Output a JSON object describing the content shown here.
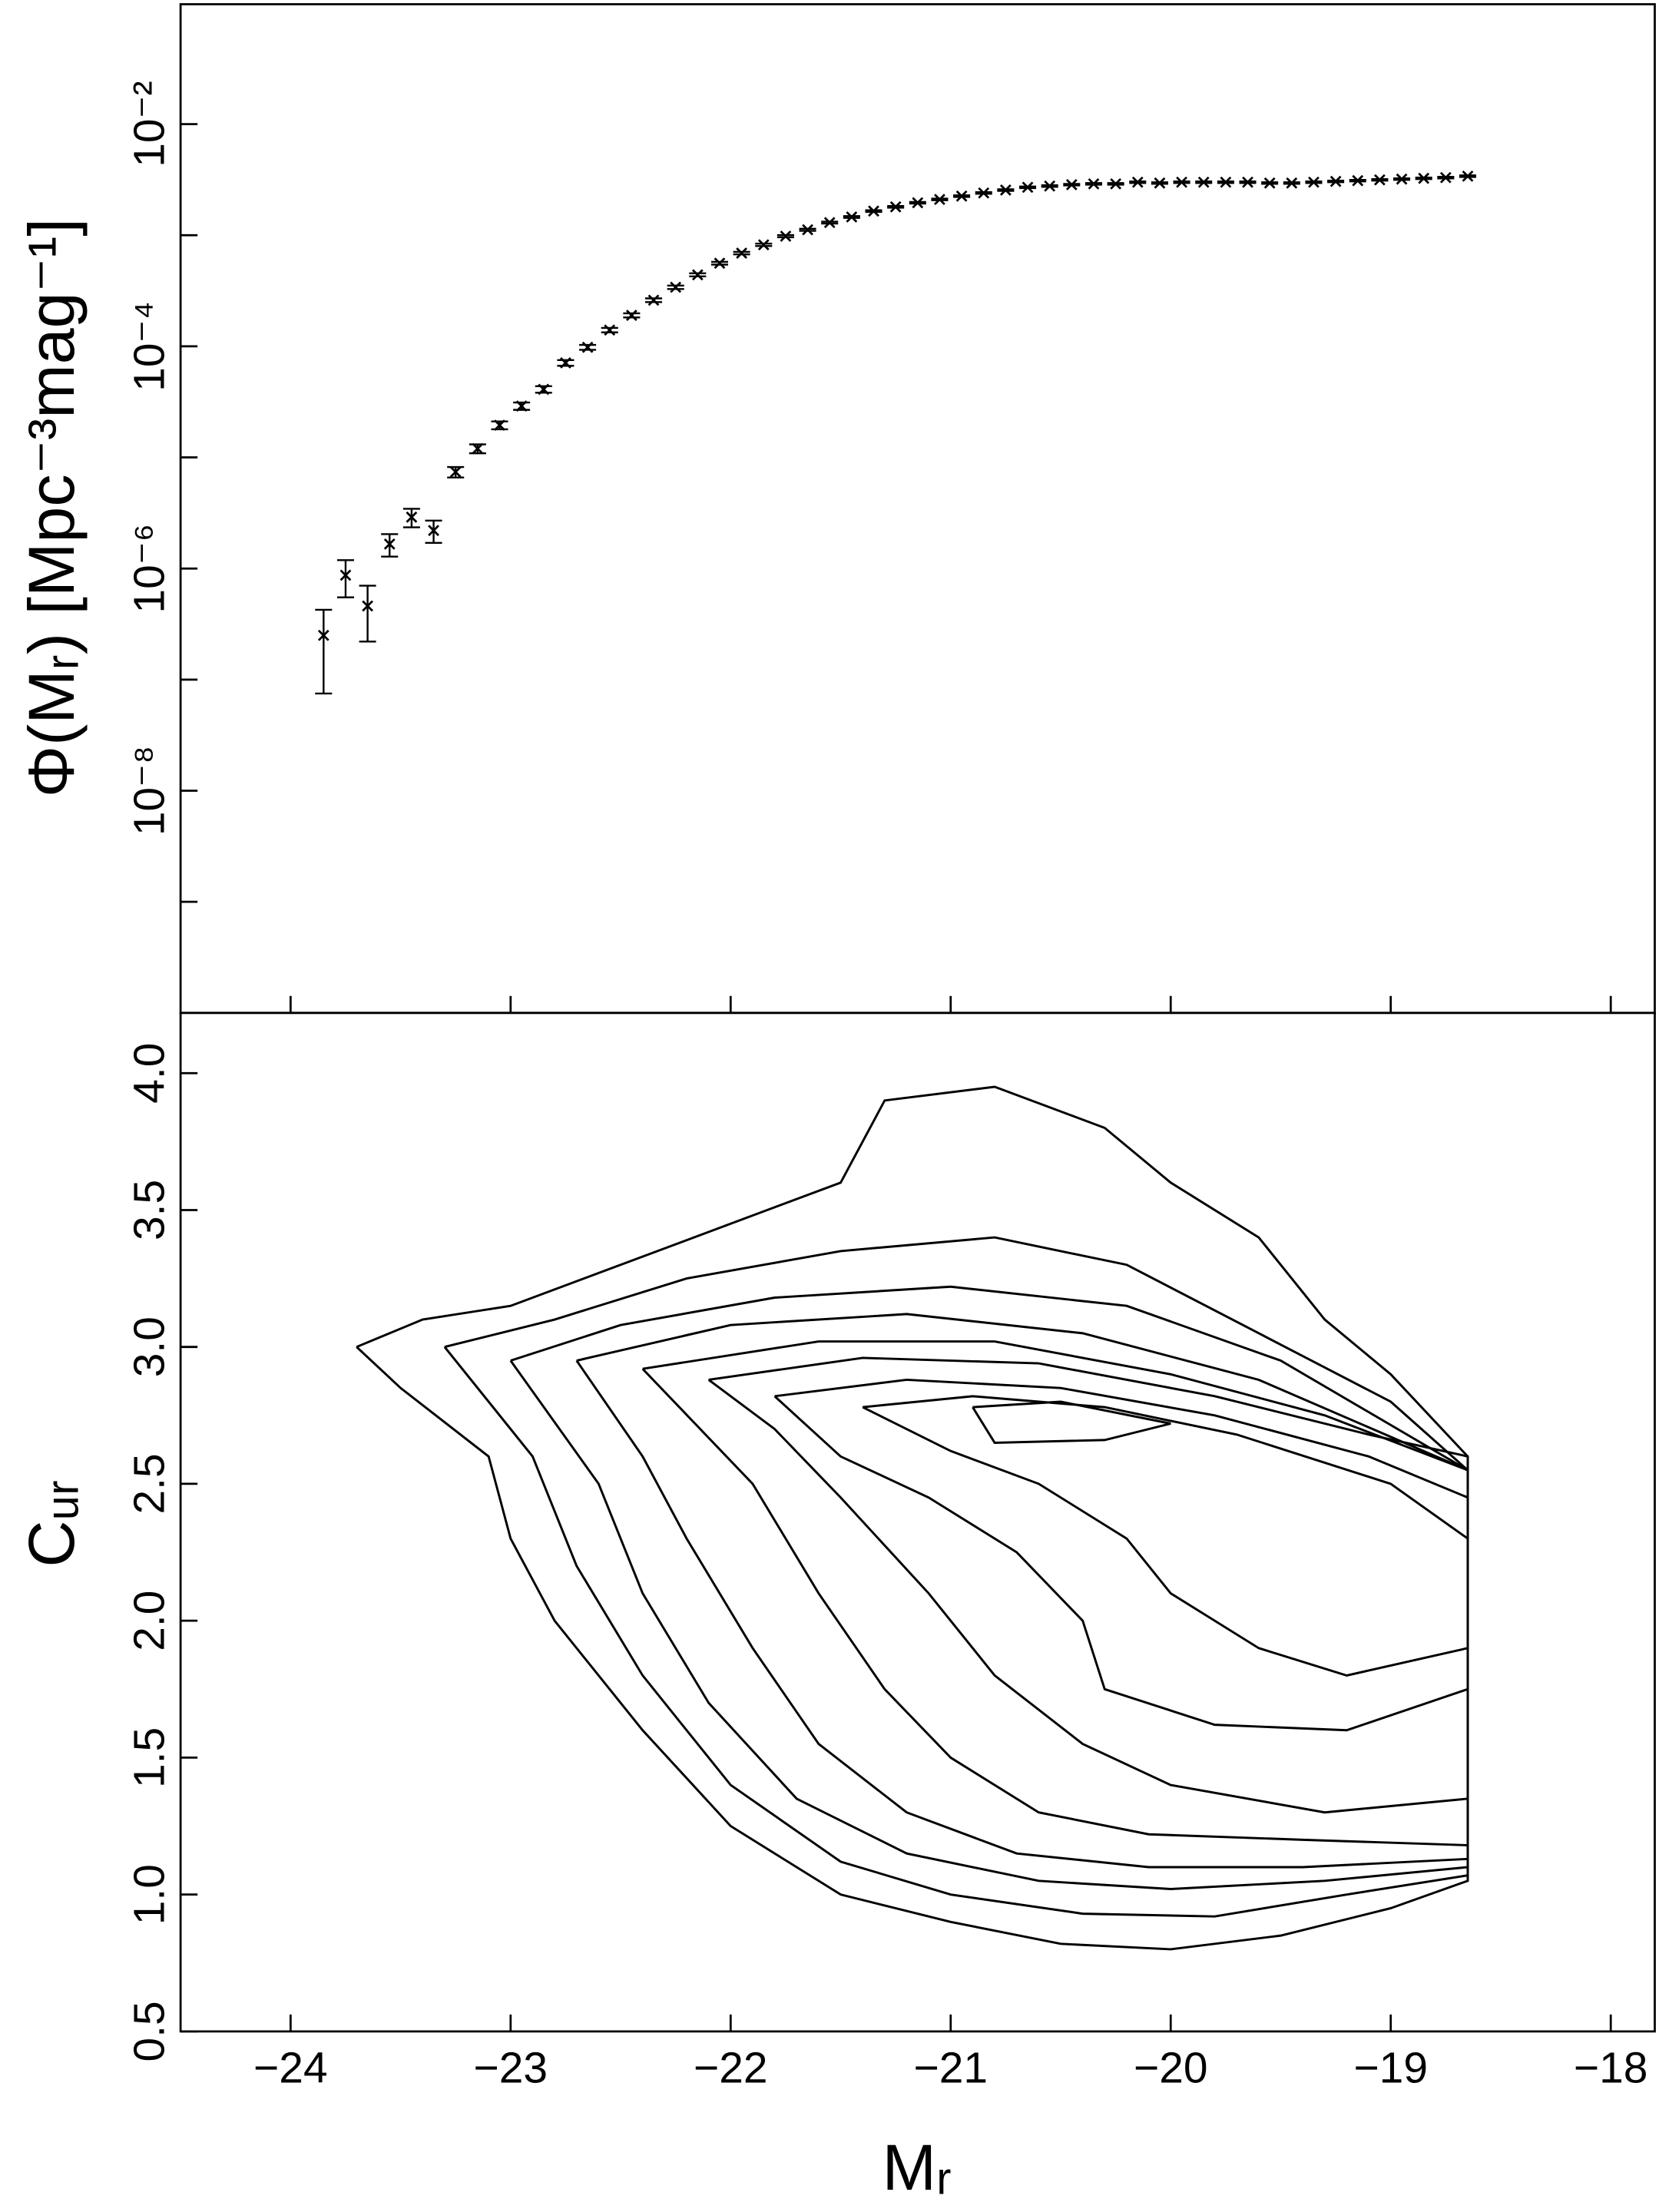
{
  "chart_data": [
    {
      "type": "scatter",
      "yscale": "log",
      "marker": "x",
      "color": "#000000",
      "xlim": [
        -24.5,
        -17.8
      ],
      "xticks": [
        -24,
        -23,
        -22,
        -21,
        -20,
        -19,
        -18
      ],
      "ylim": [
        1e-10,
        0.12
      ],
      "yticks": [
        {
          "value": 0.01,
          "label": "10⁻²"
        },
        {
          "value": 0.0001,
          "label": "10⁻⁴"
        },
        {
          "value": 1e-06,
          "label": "10⁻⁶"
        },
        {
          "value": 1e-08,
          "label": "10⁻⁸"
        }
      ],
      "yminorticks": [
        0.001,
        1e-05,
        1e-07,
        1e-09
      ],
      "ylabel": "Φ(Mᵣ) [Mpc⁻³mag⁻¹]",
      "x": [
        -23.85,
        -23.75,
        -23.65,
        -23.55,
        -23.45,
        -23.35,
        -23.25,
        -23.15,
        -23.05,
        -22.95,
        -22.85,
        -22.75,
        -22.65,
        -22.55,
        -22.45,
        -22.35,
        -22.25,
        -22.15,
        -22.05,
        -21.95,
        -21.85,
        -21.75,
        -21.65,
        -21.55,
        -21.45,
        -21.35,
        -21.25,
        -21.15,
        -21.05,
        -20.95,
        -20.85,
        -20.75,
        -20.65,
        -20.55,
        -20.45,
        -20.35,
        -20.25,
        -20.15,
        -20.05,
        -19.95,
        -19.85,
        -19.75,
        -19.65,
        -19.55,
        -19.45,
        -19.35,
        -19.25,
        -19.15,
        -19.05,
        -18.95,
        -18.85,
        -18.75,
        -18.65
      ],
      "values": [
        2.5e-07,
        8.7e-07,
        4.6e-07,
        1.66e-06,
        2.9e-06,
        2.2e-06,
        7.4e-06,
        1.2e-05,
        1.95e-05,
        2.9e-05,
        4.1e-05,
        7.1e-05,
        9.8e-05,
        0.00014,
        0.00019,
        0.00026,
        0.00034,
        0.00044,
        0.00056,
        0.00069,
        0.00082,
        0.00098,
        0.00112,
        0.0013,
        0.00146,
        0.00165,
        0.0018,
        0.00196,
        0.0021,
        0.00225,
        0.0024,
        0.00255,
        0.0027,
        0.00277,
        0.00285,
        0.0029,
        0.0029,
        0.003,
        0.00295,
        0.003,
        0.003,
        0.003,
        0.003,
        0.00295,
        0.00295,
        0.003,
        0.00305,
        0.0031,
        0.00315,
        0.0032,
        0.00325,
        0.0033,
        0.0034
      ],
      "errors": [
        1.75e-07,
        3.2e-07,
        2.4e-07,
        3.8e-07,
        5.5e-07,
        5e-07,
        8e-07,
        1.1e-06,
        1.6e-06,
        2.2e-06,
        2.8e-06,
        4.2e-06,
        5e-06,
        6.5e-06,
        8e-06,
        1e-05,
        1.2e-05,
        1.4e-05,
        1.6e-05,
        1.8e-05,
        2e-05,
        2.2e-05,
        2.4e-05,
        2.6e-05,
        2.8e-05,
        3e-05,
        3.2e-05,
        3.4e-05,
        3.6e-05,
        3.8e-05,
        4e-05,
        4.2e-05,
        4.4e-05,
        4.5e-05,
        4.6e-05,
        4.7e-05,
        4.7e-05,
        4.8e-05,
        4.8e-05,
        4.8e-05,
        4.8e-05,
        4.8e-05,
        4.8e-05,
        4.8e-05,
        4.8e-05,
        4.9e-05,
        5e-05,
        5e-05,
        5.1e-05,
        5.2e-05,
        5.2e-05,
        5.3e-05,
        5.5e-05
      ]
    },
    {
      "type": "contour",
      "color": "#000000",
      "xlim": [
        -24.5,
        -17.8
      ],
      "xticks": [
        {
          "value": -24,
          "label": "−24"
        },
        {
          "value": -23,
          "label": "−23"
        },
        {
          "value": -22,
          "label": "−22"
        },
        {
          "value": -21,
          "label": "−21"
        },
        {
          "value": -20,
          "label": "−20"
        },
        {
          "value": -19,
          "label": "−19"
        },
        {
          "value": -18,
          "label": "−18"
        }
      ],
      "ylim": [
        0.5,
        4.22
      ],
      "yticks": [
        0.5,
        {
          "value": 1,
          "label": "1.0"
        },
        1.5,
        {
          "value": 2,
          "label": "2.0"
        },
        2.5,
        {
          "value": 3,
          "label": "3.0"
        },
        3.5,
        {
          "value": 4,
          "label": "4.0"
        }
      ],
      "xlabel": "Mᵣ",
      "ylabel": "Cᵤᵣ",
      "contours": [
        {
          "x": [
            -23.7,
            -23.4,
            -23.0,
            -22.5,
            -22.0,
            -21.5,
            -21.3,
            -20.8,
            -20.3,
            -20.0,
            -19.6,
            -19.3,
            -19.0,
            -18.65,
            -18.65,
            -19.0,
            -19.5,
            -20.0,
            -20.5,
            -21.0,
            -21.5,
            -22.0,
            -22.4,
            -22.8,
            -23.0,
            -23.1,
            -23.5,
            -23.7
          ],
          "y": [
            3.0,
            3.1,
            3.15,
            3.3,
            3.45,
            3.6,
            3.9,
            3.95,
            3.8,
            3.6,
            3.4,
            3.1,
            2.9,
            2.6,
            1.05,
            0.95,
            0.85,
            0.8,
            0.82,
            0.9,
            1.0,
            1.25,
            1.6,
            2.0,
            2.3,
            2.6,
            2.85,
            3.0
          ]
        },
        {
          "x": [
            -23.3,
            -22.8,
            -22.2,
            -21.5,
            -20.8,
            -20.2,
            -19.6,
            -19.0,
            -18.65,
            -18.65,
            -19.2,
            -19.8,
            -20.4,
            -21.0,
            -21.5,
            -22.0,
            -22.4,
            -22.7,
            -22.9,
            -23.3
          ],
          "y": [
            3.0,
            3.1,
            3.25,
            3.35,
            3.4,
            3.3,
            3.05,
            2.8,
            2.55,
            1.07,
            1.0,
            0.92,
            0.93,
            1.0,
            1.12,
            1.4,
            1.8,
            2.2,
            2.6,
            3.0
          ]
        },
        {
          "x": [
            -23.0,
            -22.5,
            -21.8,
            -21.0,
            -20.2,
            -19.5,
            -18.65,
            -18.65,
            -19.3,
            -20.0,
            -20.6,
            -21.2,
            -21.7,
            -22.1,
            -22.4,
            -22.6,
            -23.0
          ],
          "y": [
            2.95,
            3.08,
            3.18,
            3.22,
            3.15,
            2.95,
            2.55,
            1.1,
            1.05,
            1.02,
            1.05,
            1.15,
            1.35,
            1.7,
            2.1,
            2.5,
            2.95
          ]
        },
        {
          "x": [
            -22.7,
            -22.0,
            -21.2,
            -20.4,
            -19.6,
            -18.65,
            -18.65,
            -19.4,
            -20.1,
            -20.7,
            -21.2,
            -21.6,
            -21.9,
            -22.2,
            -22.4,
            -22.7
          ],
          "y": [
            2.95,
            3.08,
            3.12,
            3.05,
            2.88,
            2.55,
            1.13,
            1.1,
            1.1,
            1.15,
            1.3,
            1.55,
            1.9,
            2.3,
            2.6,
            2.95
          ]
        },
        {
          "x": [
            -22.4,
            -21.6,
            -20.8,
            -20.0,
            -19.3,
            -18.65,
            -18.65,
            -19.4,
            -20.1,
            -20.6,
            -21.0,
            -21.3,
            -21.6,
            -21.9,
            -22.4
          ],
          "y": [
            2.92,
            3.02,
            3.02,
            2.9,
            2.75,
            2.55,
            1.18,
            1.2,
            1.22,
            1.3,
            1.5,
            1.75,
            2.1,
            2.5,
            2.92
          ]
        },
        {
          "x": [
            -22.1,
            -21.4,
            -20.6,
            -19.8,
            -19.1,
            -18.65,
            -18.65,
            -19.3,
            -20.0,
            -20.4,
            -20.8,
            -21.1,
            -21.5,
            -21.8,
            -22.1
          ],
          "y": [
            2.88,
            2.96,
            2.94,
            2.82,
            2.68,
            2.6,
            1.35,
            1.3,
            1.4,
            1.55,
            1.8,
            2.1,
            2.45,
            2.7,
            2.88
          ]
        },
        {
          "x": [
            -21.8,
            -21.2,
            -20.5,
            -19.8,
            -19.1,
            -18.65,
            -18.65,
            -19.2,
            -19.8,
            -20.3,
            -20.4,
            -20.7,
            -21.1,
            -21.5,
            -21.8
          ],
          "y": [
            2.82,
            2.88,
            2.85,
            2.75,
            2.6,
            2.45,
            1.75,
            1.6,
            1.62,
            1.75,
            2.0,
            2.25,
            2.45,
            2.6,
            2.82
          ]
        },
        {
          "x": [
            -21.4,
            -20.9,
            -20.3,
            -19.7,
            -19.0,
            -18.65,
            -18.65,
            -19.2,
            -19.6,
            -20.0,
            -20.2,
            -20.6,
            -21.0,
            -21.4
          ],
          "y": [
            2.78,
            2.82,
            2.78,
            2.68,
            2.5,
            2.3,
            1.9,
            1.8,
            1.9,
            2.1,
            2.3,
            2.5,
            2.62,
            2.78
          ]
        },
        {
          "x": [
            -20.9,
            -20.5,
            -20.0,
            -20.3,
            -20.8,
            -20.9
          ],
          "y": [
            2.78,
            2.8,
            2.72,
            2.66,
            2.65,
            2.78
          ]
        }
      ]
    }
  ]
}
